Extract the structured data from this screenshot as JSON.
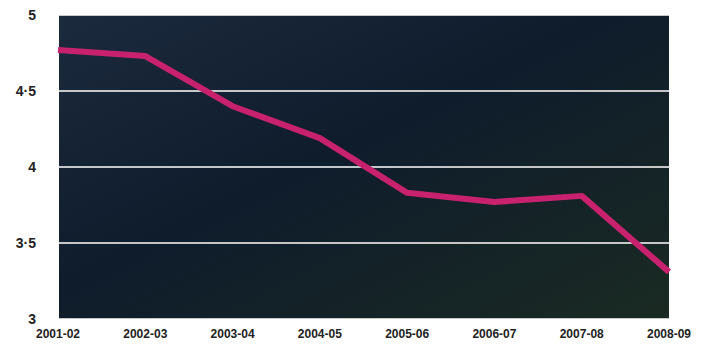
{
  "chart_data": {
    "type": "line",
    "categories": [
      "2001-02",
      "2002-03",
      "2003-04",
      "2004-05",
      "2005-06",
      "2006-07",
      "2007-08",
      "2008-09"
    ],
    "values": [
      4.77,
      4.73,
      4.4,
      4.19,
      3.83,
      3.77,
      3.81,
      3.31
    ],
    "color": "#c8226e",
    "ylim": [
      3,
      5
    ],
    "yticks": [
      3,
      {
        "value": 3.5,
        "label": "3·5"
      },
      4,
      {
        "value": 4.5,
        "label": "4·5"
      },
      5
    ],
    "grid": true
  }
}
